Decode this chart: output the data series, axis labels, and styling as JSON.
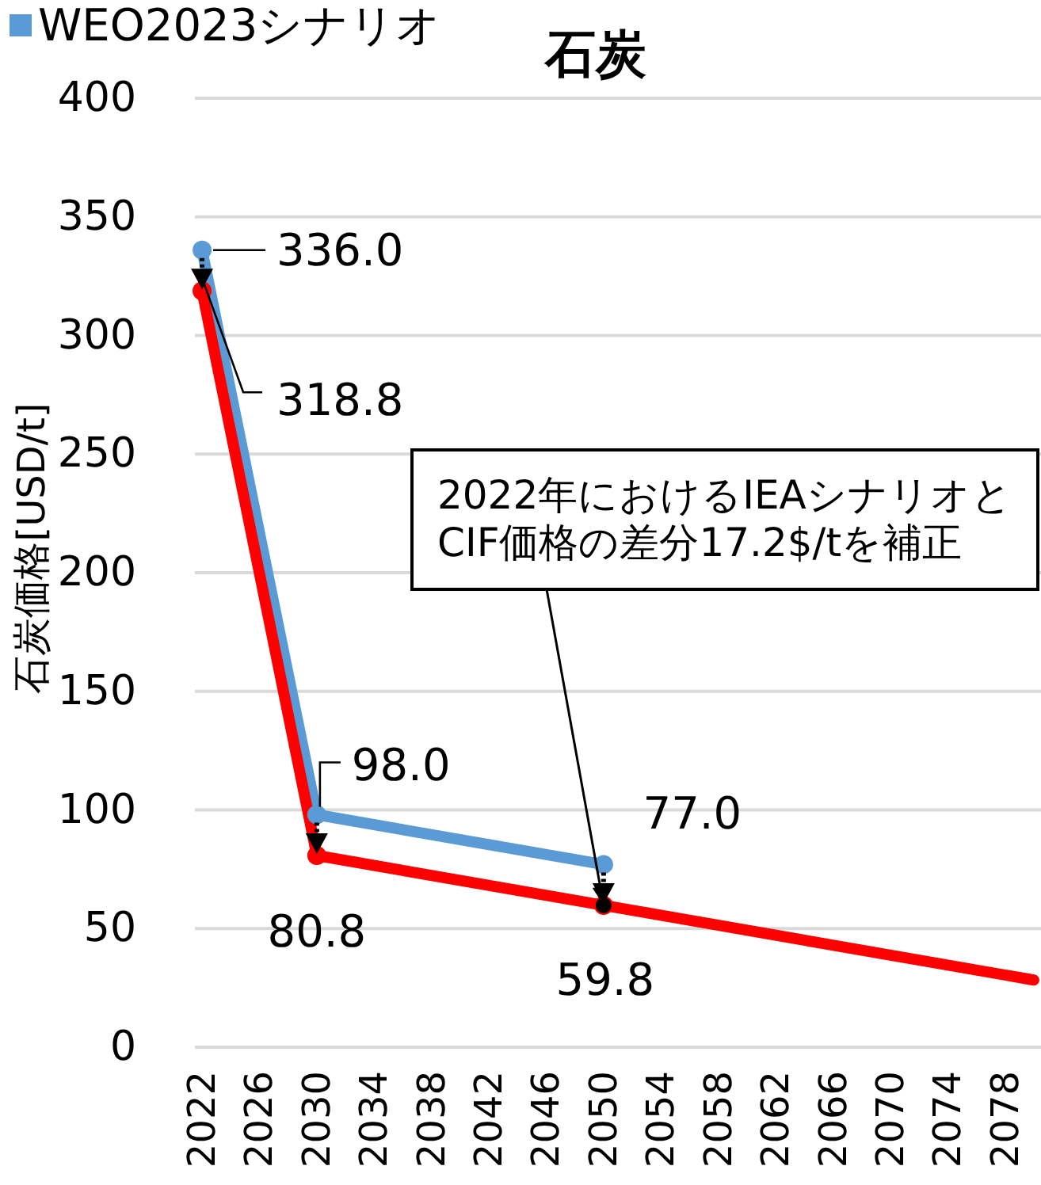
{
  "chart_data": {
    "type": "line",
    "title": "石炭",
    "ylabel": "石炭価格[USD/t]",
    "xlim": [
      2021.5,
      2080.5
    ],
    "xticks": [
      2022,
      2026,
      2030,
      2034,
      2038,
      2042,
      2046,
      2050,
      2054,
      2058,
      2062,
      2066,
      2070,
      2074,
      2078
    ],
    "ylim": [
      0,
      400
    ],
    "yticks": [
      0,
      50,
      100,
      150,
      200,
      250,
      300,
      350,
      400
    ],
    "grid": "y",
    "legend": "top left",
    "marker": "circle",
    "line_style": "solid",
    "series": [
      {
        "name": "WEO2023シナリオ",
        "color": "#5b9bd5",
        "x": [
          2022,
          2030,
          2050
        ],
        "values": [
          336.0,
          98.0,
          77.0
        ],
        "value_labels": [
          "336.0",
          "98.0",
          "77.0"
        ]
      },
      {
        "color": "#ff0000",
        "x": [
          2022,
          2030,
          2050,
          2080
        ],
        "values": [
          318.8,
          80.8,
          59.8,
          28.3
        ],
        "value_labels": [
          "318.8",
          "80.8",
          "59.8",
          null
        ]
      }
    ],
    "annotations": [
      "2022年におけるIEAシナリオと\nCIF価格の差分17.2$/tを補正"
    ]
  }
}
